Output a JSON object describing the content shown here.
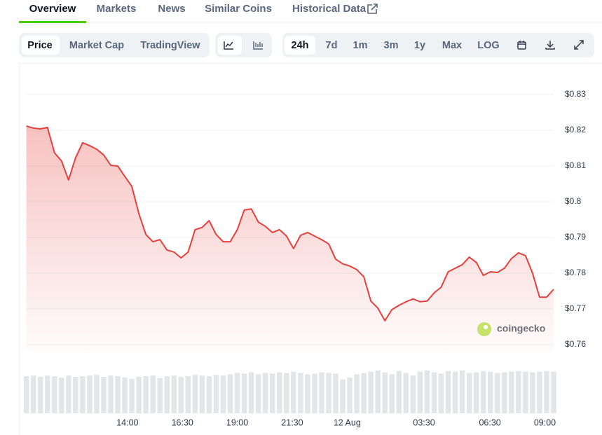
{
  "tabs": [
    "Overview",
    "Markets",
    "News",
    "Similar Coins",
    "Historical Data"
  ],
  "chart_views": [
    "Price",
    "Market Cap",
    "TradingView"
  ],
  "ranges": [
    "24h",
    "7d",
    "1m",
    "3m",
    "1y",
    "Max",
    "LOG"
  ],
  "watermark": "coingecko",
  "chart_data": {
    "type": "line",
    "x": [
      9.4,
      9.72,
      10.04,
      10.36,
      10.68,
      11,
      11.32,
      11.64,
      11.96,
      12.28,
      12.6,
      12.92,
      13.24,
      13.56,
      13.88,
      14.2,
      14.52,
      14.84,
      15.16,
      15.48,
      15.8,
      16.12,
      16.44,
      16.76,
      17.08,
      17.4,
      17.72,
      18.04,
      18.36,
      18.68,
      19,
      19.32,
      19.64,
      19.96,
      20.28,
      20.6,
      20.92,
      21.24,
      21.56,
      21.88,
      22.2,
      22.52,
      22.84,
      23.16,
      23.48,
      23.8,
      24.12,
      24.44,
      24.76,
      25.08,
      25.4,
      25.72,
      26.04,
      26.36,
      26.68,
      27,
      27.32,
      27.64,
      27.96,
      28.28,
      28.6,
      28.92,
      29.24,
      29.56,
      29.88,
      30.2,
      30.52,
      30.84,
      31.16,
      31.48,
      31.8,
      32.12,
      32.44,
      32.76,
      33.08,
      33.4
    ],
    "series": [
      {
        "color": "#e5403c",
        "values": [
          0.8212,
          0.8206,
          0.8204,
          0.8208,
          0.8137,
          0.8114,
          0.8061,
          0.8123,
          0.8165,
          0.8157,
          0.8147,
          0.8131,
          0.8102,
          0.81,
          0.8071,
          0.8043,
          0.7967,
          0.7908,
          0.7888,
          0.7894,
          0.7865,
          0.7859,
          0.7843,
          0.7859,
          0.7922,
          0.7928,
          0.7947,
          0.7908,
          0.7888,
          0.7888,
          0.7922,
          0.7977,
          0.798,
          0.7943,
          0.7931,
          0.7914,
          0.7922,
          0.7904,
          0.7869,
          0.7906,
          0.7914,
          0.7904,
          0.7894,
          0.7882,
          0.7839,
          0.7826,
          0.782,
          0.781,
          0.779,
          0.7722,
          0.7702,
          0.7667,
          0.7698,
          0.771,
          0.772,
          0.7728,
          0.772,
          0.7722,
          0.7745,
          0.7761,
          0.7804,
          0.7814,
          0.7824,
          0.7845,
          0.783,
          0.7794,
          0.7804,
          0.7802,
          0.7814,
          0.7841,
          0.7857,
          0.7849,
          0.78,
          0.7733,
          0.7733,
          0.7755
        ]
      }
    ],
    "volume": {
      "color": "#e3e5e8",
      "ylim": [
        0,
        70
      ],
      "values": [
        57,
        58,
        56,
        58,
        57,
        55,
        58,
        56,
        57,
        58,
        59,
        56,
        58,
        57,
        55,
        53,
        56,
        57,
        58,
        54,
        57,
        58,
        56,
        57,
        59,
        58,
        57,
        59,
        58,
        60,
        62,
        61,
        63,
        60,
        62,
        61,
        63,
        62,
        64,
        62,
        60,
        61,
        63,
        62,
        61,
        52,
        55,
        60,
        62,
        64,
        66,
        63,
        60,
        65,
        62,
        58,
        64,
        66,
        63,
        61,
        65,
        64,
        66,
        62,
        63,
        65,
        64,
        62,
        63,
        64,
        65,
        64,
        63,
        64,
        65,
        64
      ]
    },
    "xlim": [
      9.38,
      33.4
    ],
    "xticks": [
      {
        "value": 14,
        "label": "14:00"
      },
      {
        "value": 16.5,
        "label": "16:30"
      },
      {
        "value": 19,
        "label": "19:00"
      },
      {
        "value": 21.5,
        "label": "21:30"
      },
      {
        "value": 24,
        "label": "12 Aug"
      },
      {
        "value": 27.5,
        "label": "03:30"
      },
      {
        "value": 30.5,
        "label": "06:30"
      },
      {
        "value": 33,
        "label": "09:00"
      }
    ],
    "ylim": [
      0.76,
      0.83
    ],
    "yticks": [
      {
        "value": 0.76,
        "label": "$0.76"
      },
      {
        "value": 0.77,
        "label": "$0.77"
      },
      {
        "value": 0.78,
        "label": "$0.78"
      },
      {
        "value": 0.79,
        "label": "$0.79"
      },
      {
        "value": 0.8,
        "label": "$0.8"
      },
      {
        "value": 0.81,
        "label": "$0.81"
      },
      {
        "value": 0.82,
        "label": "$0.82"
      },
      {
        "value": 0.83,
        "label": "$0.83"
      }
    ],
    "grid": true
  }
}
